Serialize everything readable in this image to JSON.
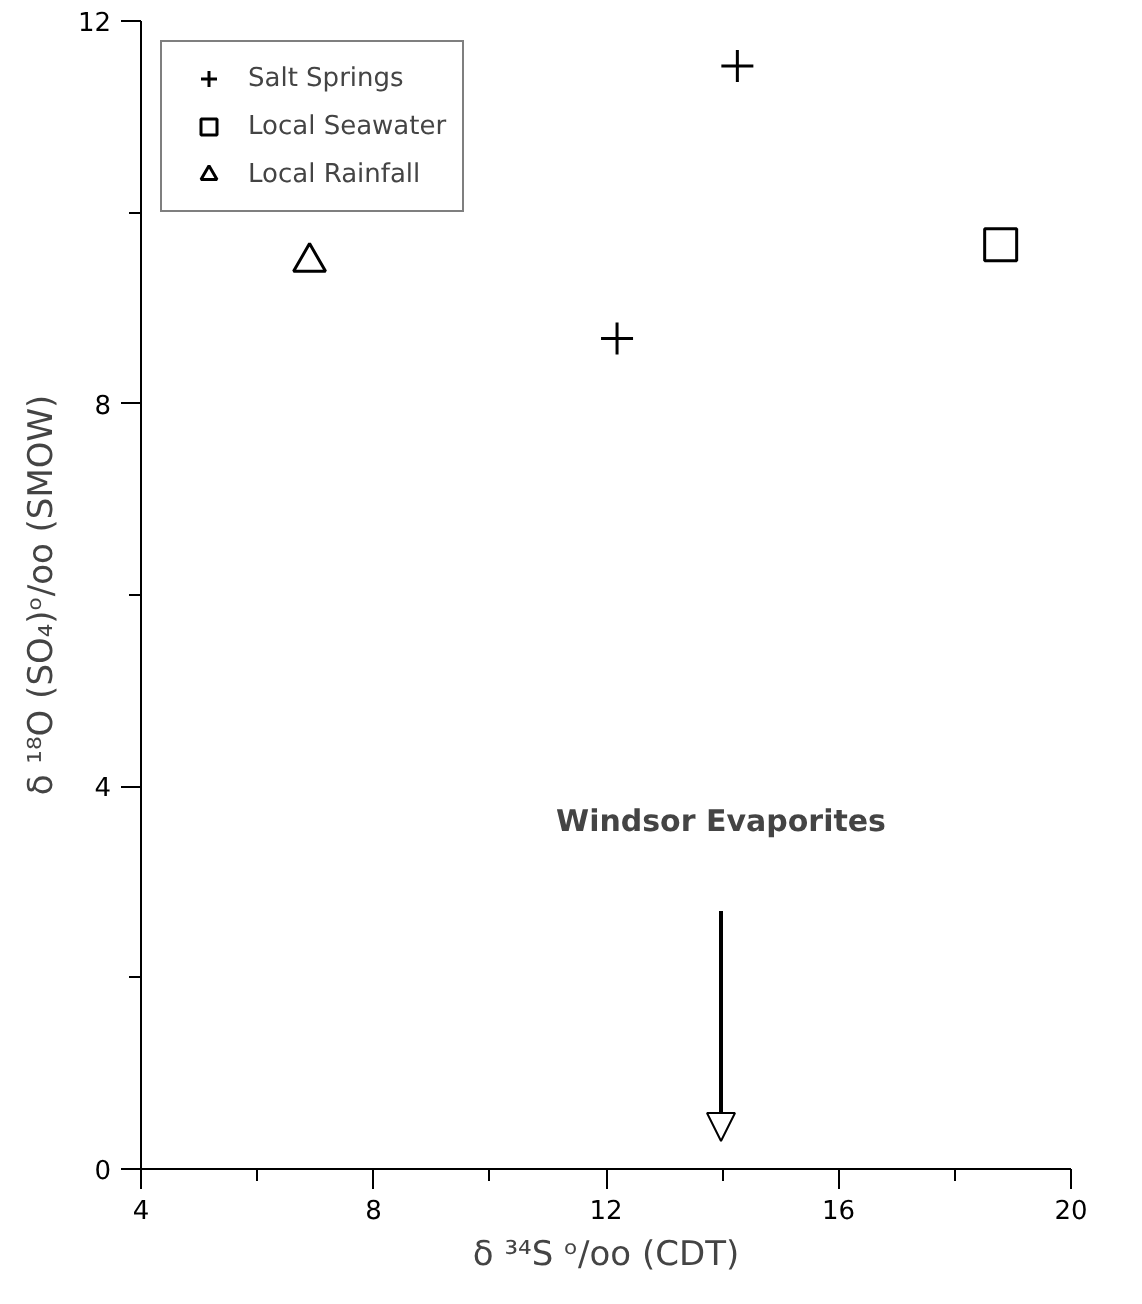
{
  "chart_data": {
    "type": "scatter",
    "xlabel": "δ ³⁴S ᵒ/oo (CDT)",
    "ylabel": "δ ¹⁸O (SO₄)ᵒ/oo (SMOW)",
    "series": [
      {
        "name": "Salt Springs",
        "color": "#000000",
        "marker": "cross",
        "x": [
          14.26,
          12.19
        ],
        "values": [
          11.53,
          8.68
        ]
      },
      {
        "name": "Local Seawater",
        "color": "#000000",
        "marker": "square",
        "x": [
          18.79
        ],
        "values": [
          9.66
        ]
      },
      {
        "name": "Local Rainfall",
        "color": "#000000",
        "marker": "triangle",
        "x": [
          6.9
        ],
        "values": [
          9.48
        ]
      }
    ],
    "xlim": [
      4,
      20
    ],
    "ylim": [
      0,
      12
    ],
    "xticks": [
      4,
      {
        "value": 6,
        "label": null
      },
      8,
      {
        "value": 10,
        "label": null
      },
      12,
      {
        "value": 14,
        "label": null
      },
      16,
      {
        "value": 18,
        "label": null
      },
      20
    ],
    "yticks": [
      0,
      {
        "value": 2,
        "label": null
      },
      4,
      {
        "value": 6,
        "label": null
      },
      8,
      {
        "value": 10,
        "label": null
      },
      12
    ],
    "annotations": [
      "Windsor Evaporites"
    ],
    "grid": false,
    "legend": "top left"
  }
}
